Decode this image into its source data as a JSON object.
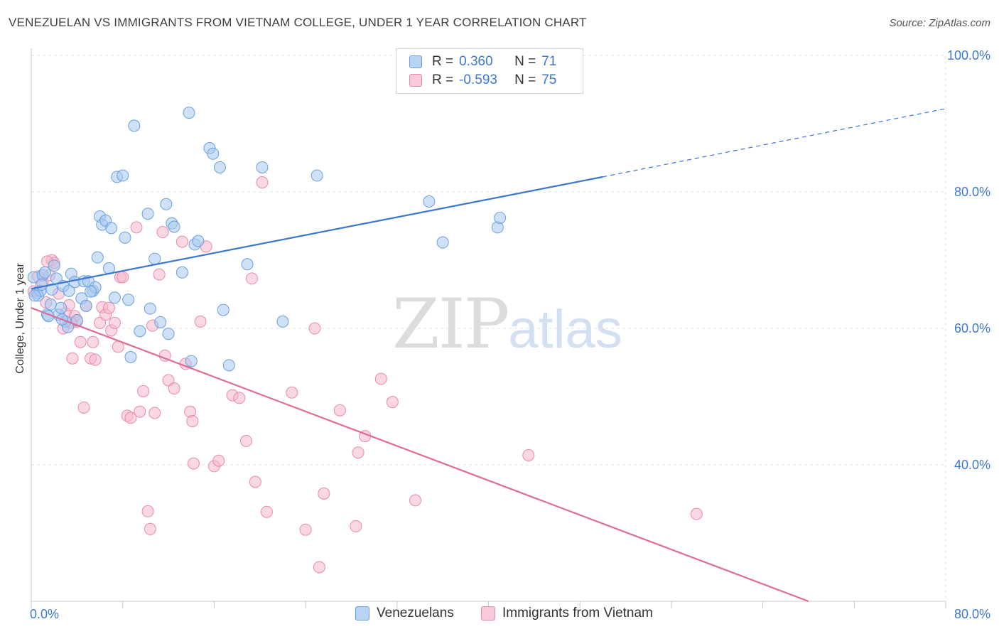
{
  "title": "VENEZUELAN VS IMMIGRANTS FROM VIETNAM COLLEGE, UNDER 1 YEAR CORRELATION CHART",
  "source": "Source: ZipAtlas.com",
  "watermark": {
    "zip": "ZIP",
    "atlas": "atlas"
  },
  "legend": {
    "r_label": "R =",
    "n_label": "N =",
    "rows": [
      {
        "r": "0.360",
        "n": "71"
      },
      {
        "r": "-0.593",
        "n": "75"
      }
    ]
  },
  "colors": {
    "blue_fill": "#a8c8f0",
    "blue_stroke": "#6a9fe0",
    "blue_line": "#3b76d0",
    "pink_fill": "#f5b8cc",
    "pink_stroke": "#e88aa8",
    "pink_line": "#e06a98",
    "tick_text": "#3d78d0",
    "grid": "#e3e3e3"
  },
  "chart_data": {
    "type": "scatter",
    "xlabel": "",
    "ylabel": "College, Under 1 year",
    "xlim": [
      0,
      80
    ],
    "ylim": [
      20,
      100
    ],
    "x_ticks": [
      "0.0%",
      "80.0%"
    ],
    "y_ticks": [
      {
        "value": 100,
        "label": "100.0%"
      },
      {
        "value": 80,
        "label": "80.0%"
      },
      {
        "value": 60,
        "label": "60.0%"
      },
      {
        "value": 40,
        "label": "40.0%"
      }
    ],
    "grid": true,
    "legend_position": "bottom",
    "series": [
      {
        "name": "Venezuelans",
        "trend": {
          "x0": 0,
          "y0": 65.8,
          "x1": 50,
          "y1": 82.2,
          "dash_to_x": 80,
          "dash_to_y": 92.2
        },
        "points": [
          [
            0.2,
            67.5
          ],
          [
            0.5,
            65.2
          ],
          [
            0.6,
            64.8
          ],
          [
            0.8,
            65.5
          ],
          [
            1.0,
            67.8
          ],
          [
            1.2,
            68.2
          ],
          [
            1.4,
            62.0
          ],
          [
            1.5,
            61.8
          ],
          [
            1.7,
            63.5
          ],
          [
            1.8,
            65.7
          ],
          [
            2.0,
            69.2
          ],
          [
            2.2,
            67.3
          ],
          [
            2.4,
            62.0
          ],
          [
            2.6,
            63.0
          ],
          [
            2.8,
            66.2
          ],
          [
            3.0,
            61.0
          ],
          [
            3.2,
            60.2
          ],
          [
            3.3,
            65.5
          ],
          [
            3.5,
            68.0
          ],
          [
            3.8,
            66.8
          ],
          [
            4.0,
            61.2
          ],
          [
            4.4,
            64.4
          ],
          [
            4.6,
            66.9
          ],
          [
            4.8,
            63.3
          ],
          [
            5.0,
            66.9
          ],
          [
            5.4,
            65.5
          ],
          [
            5.6,
            66.0
          ],
          [
            5.8,
            70.4
          ],
          [
            6.0,
            76.4
          ],
          [
            6.2,
            75.2
          ],
          [
            6.5,
            75.8
          ],
          [
            6.8,
            68.8
          ],
          [
            7.0,
            74.7
          ],
          [
            7.3,
            64.5
          ],
          [
            7.5,
            82.2
          ],
          [
            8.0,
            82.4
          ],
          [
            8.2,
            73.3
          ],
          [
            8.5,
            64.2
          ],
          [
            8.7,
            55.8
          ],
          [
            9.0,
            89.7
          ],
          [
            9.5,
            59.6
          ],
          [
            10.2,
            76.8
          ],
          [
            10.4,
            62.9
          ],
          [
            10.8,
            70.2
          ],
          [
            11.3,
            60.9
          ],
          [
            11.8,
            78.2
          ],
          [
            12.0,
            59.2
          ],
          [
            12.3,
            75.4
          ],
          [
            12.5,
            74.9
          ],
          [
            13.2,
            68.2
          ],
          [
            13.8,
            91.6
          ],
          [
            14.0,
            55.2
          ],
          [
            14.3,
            72.3
          ],
          [
            14.6,
            72.8
          ],
          [
            15.6,
            86.4
          ],
          [
            15.9,
            85.6
          ],
          [
            16.5,
            83.6
          ],
          [
            16.8,
            62.7
          ],
          [
            17.3,
            54.6
          ],
          [
            18.9,
            69.4
          ],
          [
            20.2,
            83.6
          ],
          [
            22.0,
            61.0
          ],
          [
            25.0,
            82.4
          ],
          [
            34.8,
            78.6
          ],
          [
            36.0,
            72.6
          ],
          [
            40.8,
            74.8
          ],
          [
            41.0,
            76.2
          ],
          [
            0.3,
            64.8
          ],
          [
            0.9,
            66.4
          ],
          [
            2.7,
            61.3
          ],
          [
            5.2,
            65.4
          ]
        ]
      },
      {
        "name": "Immigrants from Vietnam",
        "trend": {
          "x0": 0,
          "y0": 63.0,
          "x1": 68,
          "y1": 20.0
        },
        "points": [
          [
            0.2,
            65.4
          ],
          [
            0.6,
            67.6
          ],
          [
            1.0,
            66.6
          ],
          [
            1.3,
            63.8
          ],
          [
            1.6,
            67.8
          ],
          [
            1.8,
            70.0
          ],
          [
            2.0,
            69.6
          ],
          [
            2.4,
            65.1
          ],
          [
            2.8,
            60.0
          ],
          [
            3.0,
            62.2
          ],
          [
            3.3,
            63.4
          ],
          [
            3.6,
            55.6
          ],
          [
            3.8,
            61.8
          ],
          [
            4.0,
            61.0
          ],
          [
            4.3,
            58.0
          ],
          [
            4.6,
            48.4
          ],
          [
            4.8,
            63.3
          ],
          [
            5.2,
            55.6
          ],
          [
            5.4,
            58.0
          ],
          [
            5.6,
            55.4
          ],
          [
            6.0,
            60.8
          ],
          [
            6.2,
            63.1
          ],
          [
            6.5,
            62.0
          ],
          [
            7.0,
            59.7
          ],
          [
            7.3,
            60.8
          ],
          [
            7.6,
            57.3
          ],
          [
            7.8,
            67.5
          ],
          [
            8.0,
            67.5
          ],
          [
            8.4,
            47.2
          ],
          [
            8.7,
            46.9
          ],
          [
            9.2,
            74.8
          ],
          [
            9.5,
            47.8
          ],
          [
            9.8,
            50.8
          ],
          [
            10.2,
            33.2
          ],
          [
            10.4,
            30.6
          ],
          [
            10.8,
            47.6
          ],
          [
            11.2,
            67.9
          ],
          [
            11.5,
            74.1
          ],
          [
            11.7,
            56.0
          ],
          [
            12.0,
            52.4
          ],
          [
            12.5,
            51.2
          ],
          [
            13.2,
            72.7
          ],
          [
            13.5,
            54.8
          ],
          [
            13.9,
            47.8
          ],
          [
            14.1,
            46.4
          ],
          [
            14.2,
            40.2
          ],
          [
            14.8,
            61.0
          ],
          [
            15.3,
            72.0
          ],
          [
            16.0,
            39.8
          ],
          [
            16.4,
            40.6
          ],
          [
            17.6,
            50.2
          ],
          [
            18.2,
            49.8
          ],
          [
            18.8,
            43.5
          ],
          [
            19.3,
            67.3
          ],
          [
            19.6,
            37.5
          ],
          [
            20.2,
            81.4
          ],
          [
            20.6,
            33.1
          ],
          [
            22.8,
            50.6
          ],
          [
            24.0,
            30.5
          ],
          [
            24.8,
            60.0
          ],
          [
            25.2,
            25.0
          ],
          [
            25.6,
            35.8
          ],
          [
            27.0,
            48.0
          ],
          [
            28.4,
            31.0
          ],
          [
            28.6,
            41.8
          ],
          [
            29.2,
            44.2
          ],
          [
            30.6,
            52.6
          ],
          [
            31.6,
            49.2
          ],
          [
            33.6,
            34.8
          ],
          [
            43.5,
            41.4
          ],
          [
            58.2,
            32.8
          ],
          [
            1.4,
            69.8
          ],
          [
            3.5,
            60.8
          ],
          [
            6.8,
            63.0
          ],
          [
            10.6,
            60.4
          ]
        ]
      }
    ]
  }
}
